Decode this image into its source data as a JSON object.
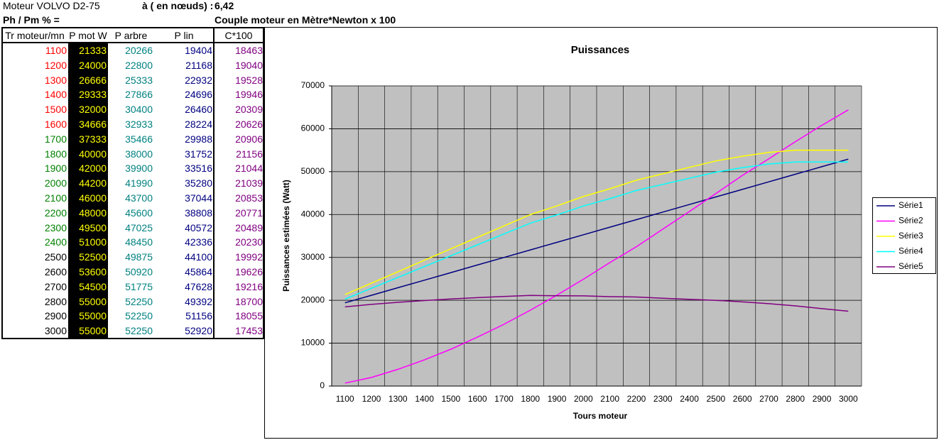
{
  "header": {
    "engine": "Moteur VOLVO D2-75",
    "speed_label": "à ( en nœuds) :",
    "speed_value": "6,42",
    "ratio_label": "Ph / Pm % =",
    "torque_label": "Couple moteur en Mètre*Newton x 100"
  },
  "table": {
    "headers": [
      "Tr moteur/mn",
      "P mot W",
      "P arbre",
      "P lin",
      "C*100"
    ],
    "rows": [
      [
        1100,
        21333,
        20266,
        19404,
        18463
      ],
      [
        1200,
        24000,
        22800,
        21168,
        19040
      ],
      [
        1300,
        26666,
        25333,
        22932,
        19528
      ],
      [
        1400,
        29333,
        27866,
        24696,
        19946
      ],
      [
        1500,
        32000,
        30400,
        26460,
        20309
      ],
      [
        1600,
        34666,
        32933,
        28224,
        20626
      ],
      [
        1700,
        37333,
        35466,
        29988,
        20906
      ],
      [
        1800,
        40000,
        38000,
        31752,
        21156
      ],
      [
        1900,
        42000,
        39900,
        33516,
        21044
      ],
      [
        2000,
        44200,
        41990,
        35280,
        21039
      ],
      [
        2100,
        46000,
        43700,
        37044,
        20853
      ],
      [
        2200,
        48000,
        45600,
        38808,
        20771
      ],
      [
        2300,
        49500,
        47025,
        40572,
        20489
      ],
      [
        2400,
        51000,
        48450,
        42336,
        20230
      ],
      [
        2500,
        52500,
        49875,
        44100,
        19992
      ],
      [
        2600,
        53600,
        50920,
        45864,
        19626
      ],
      [
        2700,
        54500,
        51775,
        47628,
        19216
      ],
      [
        2800,
        55000,
        52250,
        49392,
        18700
      ],
      [
        2900,
        55000,
        52250,
        51156,
        18055
      ],
      [
        3000,
        55000,
        52250,
        52920,
        17453
      ]
    ]
  },
  "chart_data": {
    "type": "line",
    "title": "Puissances",
    "x_label": "Tours moteur",
    "y_label": "Puissances estimées (Watt)",
    "categories": [
      "1100",
      "1200",
      "1300",
      "1400",
      "1500",
      "1600",
      "1700",
      "1800",
      "1900",
      "2000",
      "2100",
      "2200",
      "2300",
      "2400",
      "2500",
      "2600",
      "2700",
      "2800",
      "2900",
      "3000"
    ],
    "ylim": [
      0,
      70000
    ],
    "yticks": [
      0,
      10000,
      20000,
      30000,
      40000,
      50000,
      60000,
      70000
    ],
    "grid": true,
    "legend": "right",
    "series": [
      {
        "name": "Série1",
        "color": "#000080",
        "values": [
          19404,
          21168,
          22932,
          24696,
          26460,
          28224,
          29988,
          31752,
          33516,
          35280,
          37044,
          38808,
          40572,
          42336,
          44100,
          45864,
          47628,
          49392,
          51156,
          52920
        ]
      },
      {
        "name": "Série2",
        "color": "#ff00ff",
        "values": [
          700,
          2000,
          3900,
          6100,
          8600,
          11400,
          14400,
          17700,
          21200,
          24900,
          28800,
          32500,
          36600,
          40700,
          44900,
          49100,
          53000,
          57000,
          60800,
          64400
        ]
      },
      {
        "name": "Série3",
        "color": "#ffff00",
        "values": [
          21333,
          24000,
          26666,
          29333,
          32000,
          34666,
          37333,
          40000,
          42000,
          44200,
          46000,
          48000,
          49500,
          51000,
          52500,
          53600,
          54500,
          55000,
          55000,
          55000
        ]
      },
      {
        "name": "Série4",
        "color": "#00ffff",
        "values": [
          20266,
          22800,
          25333,
          27866,
          30400,
          32933,
          35466,
          38000,
          39900,
          41990,
          43700,
          45600,
          47025,
          48450,
          49875,
          50920,
          51775,
          52250,
          52250,
          52250
        ]
      },
      {
        "name": "Série5",
        "color": "#800080",
        "values": [
          18463,
          19040,
          19528,
          19946,
          20309,
          20626,
          20906,
          21156,
          21044,
          21039,
          20853,
          20771,
          20489,
          20230,
          19992,
          19626,
          19216,
          18700,
          18055,
          17453
        ]
      }
    ]
  }
}
